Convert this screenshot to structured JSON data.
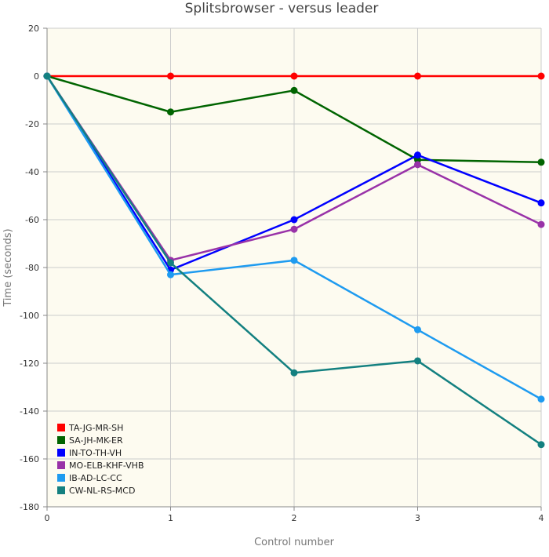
{
  "chart_data": {
    "type": "line",
    "title": "Splitsbrowser - versus leader",
    "xlabel": "Control number",
    "ylabel": "Time (seconds)",
    "x": [
      0,
      1,
      2,
      3,
      4
    ],
    "xlim": [
      0,
      4
    ],
    "ylim": [
      -180,
      20
    ],
    "yticks": [
      20,
      0,
      -20,
      -40,
      -60,
      -80,
      -100,
      -120,
      -140,
      -160,
      -180
    ],
    "xticks": [
      0,
      1,
      2,
      3,
      4
    ],
    "grid": true,
    "legend_position": "bottom-left",
    "background_color": "#fdfbf0",
    "series": [
      {
        "name": "TA-JG-MR-SH",
        "color": "#ff0000",
        "values": [
          0,
          0,
          0,
          0,
          0
        ]
      },
      {
        "name": "SA-JH-MK-ER",
        "color": "#006400",
        "values": [
          0,
          -15,
          -6,
          -35,
          -36
        ]
      },
      {
        "name": "IN-TO-TH-VH",
        "color": "#0000ff",
        "values": [
          0,
          -81,
          -60,
          -33,
          -53
        ]
      },
      {
        "name": "MO-ELB-KHF-VHB",
        "color": "#9932a8",
        "values": [
          0,
          -77,
          -64,
          -37,
          -62
        ]
      },
      {
        "name": "IB-AD-LC-CC",
        "color": "#1e9bf0",
        "values": [
          0,
          -83,
          -77,
          -106,
          -135
        ]
      },
      {
        "name": "CW-NL-RS-MCD",
        "color": "#138080",
        "values": [
          0,
          -78,
          -124,
          -119,
          -154
        ]
      }
    ]
  }
}
